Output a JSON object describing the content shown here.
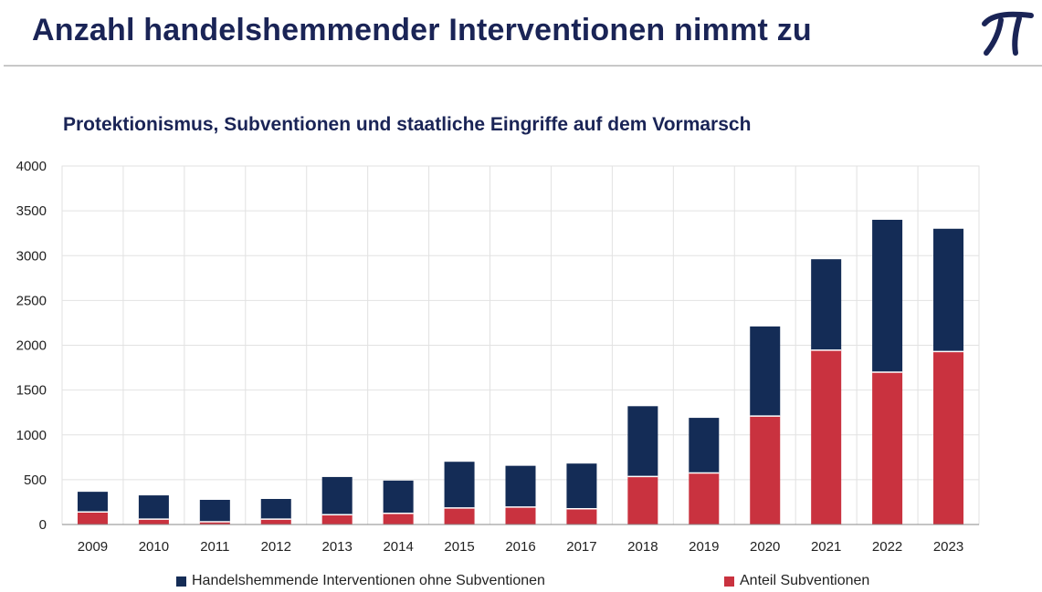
{
  "header": {
    "title": "Anzahl handelshemmender Interventionen nimmt zu"
  },
  "chart_data": {
    "type": "bar",
    "stacked": true,
    "title": "Protektionismus, Subventionen und staatliche Eingriffe auf dem Vormarsch",
    "xlabel": "",
    "ylabel": "",
    "categories": [
      "2009",
      "2010",
      "2011",
      "2012",
      "2013",
      "2014",
      "2015",
      "2016",
      "2017",
      "2018",
      "2019",
      "2020",
      "2021",
      "2022",
      "2023"
    ],
    "ylim": [
      0,
      4000
    ],
    "yticks": [
      0,
      500,
      1000,
      1500,
      2000,
      2500,
      3000,
      3500,
      4000
    ],
    "grid": true,
    "legend_position": "bottom",
    "series": [
      {
        "name": "Anteil Subventionen",
        "color": "#c9323f",
        "values": [
          140,
          60,
          30,
          60,
          110,
          125,
          185,
          195,
          175,
          535,
          575,
          1210,
          1945,
          1700,
          1930
        ]
      },
      {
        "name": "Handelshemmende Interventionen ohne Subventionen",
        "color": "#142c56",
        "values": [
          225,
          265,
          245,
          225,
          420,
          365,
          515,
          460,
          505,
          785,
          615,
          1000,
          1015,
          1700,
          1370
        ]
      }
    ],
    "legend_order": [
      1,
      0
    ]
  }
}
